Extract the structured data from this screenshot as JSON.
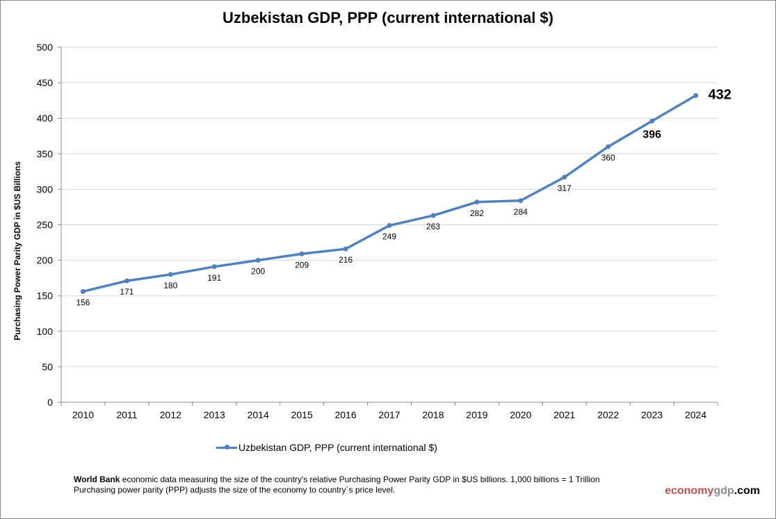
{
  "chart_data": {
    "type": "line",
    "title": "Uzbekistan GDP, PPP (current international $)",
    "ylabel": "Purchasing Power Parity GDP in $US Billions",
    "xlabel": "",
    "categories": [
      "2010",
      "2011",
      "2012",
      "2013",
      "2014",
      "2015",
      "2016",
      "2017",
      "2018",
      "2019",
      "2020",
      "2021",
      "2022",
      "2023",
      "2024"
    ],
    "series": [
      {
        "name": "Uzbekistan GDP, PPP (current international $)",
        "values": [
          156,
          171,
          180,
          191,
          200,
          209,
          216,
          249,
          263,
          282,
          284,
          317,
          360,
          396,
          432
        ],
        "color": "#4f81bd"
      }
    ],
    "ylim": [
      0,
      500
    ],
    "yticks": [
      0,
      50,
      100,
      150,
      200,
      250,
      300,
      350,
      400,
      450,
      500
    ],
    "grid": true,
    "legend": "bottom"
  },
  "footer": {
    "source_bold": "World Bank",
    "line1": " economic data  measuring the size of the country's relative  Purchasing Power Parity GDP in $US billions. 1,000 billions = 1 Trillion",
    "line2": "Purchasing power parity (PPP) adjusts the size of the economy to country`s price level.",
    "brand_a": "economy",
    "brand_b": "gdp",
    "brand_c": ".com",
    "brand_colors": [
      "#c0504d",
      "#8c8c8c",
      "#000000"
    ]
  }
}
